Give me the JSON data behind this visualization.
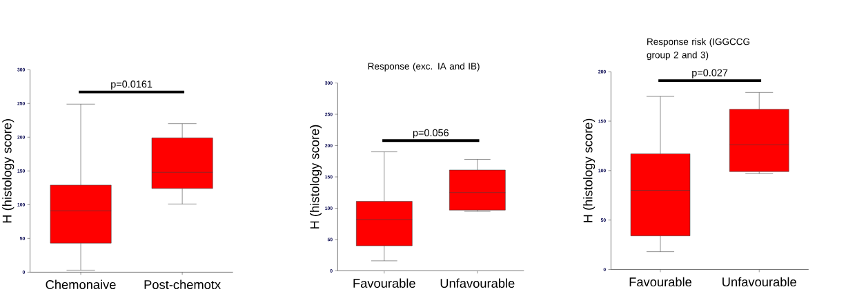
{
  "chart_data": [
    {
      "type": "box",
      "categories": [
        "Chemonaive",
        "Post-chemotx"
      ],
      "color": "#ff0000",
      "ylabel": "H (histology score)",
      "ylim": [
        0,
        300
      ],
      "yticks": [
        0,
        50,
        100,
        150,
        200,
        250,
        300
      ],
      "boxes": [
        {
          "low": 3,
          "q1": 43,
          "median": 91,
          "q3": 129,
          "high": 249
        },
        {
          "low": 101,
          "q1": 124,
          "median": 148,
          "q3": 199,
          "high": 220
        }
      ],
      "annotations": [
        "p=0.0161"
      ]
    },
    {
      "type": "box",
      "title": "Response (exc. IA and IB)",
      "categories": [
        "Favourable",
        "Unfavourable"
      ],
      "color": "#ff0000",
      "ylabel": "H (histology score)",
      "ylim": [
        0,
        300
      ],
      "yticks": [
        0,
        50,
        100,
        150,
        200,
        250,
        300
      ],
      "boxes": [
        {
          "low": 16,
          "q1": 40,
          "median": 82,
          "q3": 111,
          "high": 190
        },
        {
          "low": 95,
          "q1": 97,
          "median": 125,
          "q3": 161,
          "high": 178
        }
      ],
      "annotations": [
        "p=0.056"
      ]
    },
    {
      "type": "box",
      "title": "Response risk (IGGCCG group 2 and 3)",
      "categories": [
        "Favourable",
        "Unfavourable"
      ],
      "color": "#ff0000",
      "ylabel": "H (histology score)",
      "ylim": [
        0,
        200
      ],
      "yticks": [
        0,
        50,
        100,
        150,
        200
      ],
      "boxes": [
        {
          "low": 18,
          "q1": 34,
          "median": 80,
          "q3": 117,
          "high": 175
        },
        {
          "low": 97,
          "q1": 99,
          "median": 126,
          "q3": 162,
          "high": 179
        }
      ],
      "annotations": [
        "p=0.027"
      ]
    }
  ]
}
